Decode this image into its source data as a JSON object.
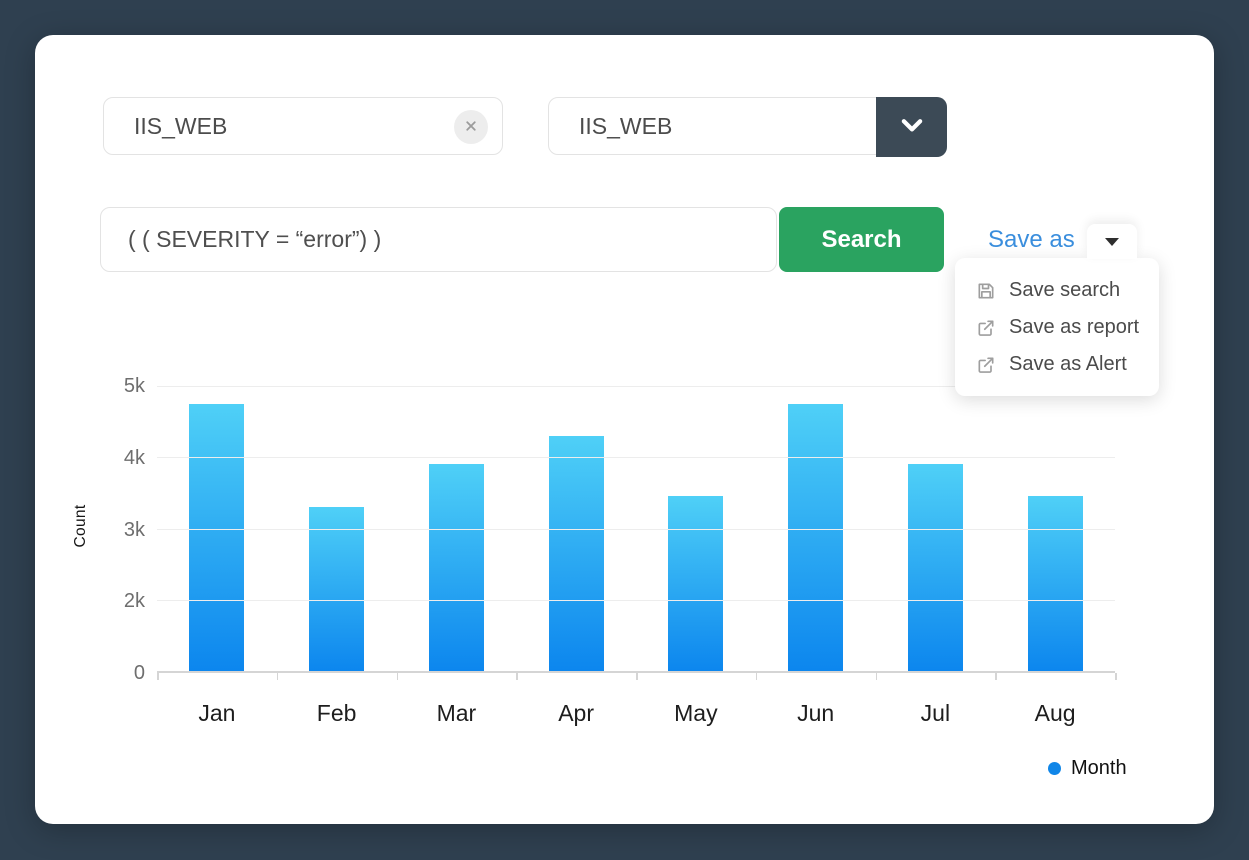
{
  "theme": {
    "page_bg": "#2f4050",
    "card_bg": "#ffffff",
    "accent_green": "#2aa360",
    "link_blue": "#3a8edd",
    "select_arrow_bg": "#3c4a56",
    "bar_gradient_top": "#4fd0f7",
    "bar_gradient_bottom": "#0c86ee",
    "legend_dot": "#1086e8"
  },
  "filters": {
    "log_type": {
      "value": "IIS_WEB"
    },
    "log_source": {
      "value": "IIS_WEB"
    }
  },
  "search": {
    "query": "( ( SEVERITY = “error”) )",
    "button_label": "Search",
    "save_as_label": "Save as",
    "menu": {
      "items": [
        {
          "icon": "save-icon",
          "label": "Save search"
        },
        {
          "icon": "external-link-icon",
          "label": "Save as report"
        },
        {
          "icon": "external-link-icon",
          "label": "Save as Alert"
        }
      ]
    }
  },
  "chart_data": {
    "type": "bar",
    "categories": [
      "Jan",
      "Feb",
      "Mar",
      "Apr",
      "May",
      "Jun",
      "Jul",
      "Aug"
    ],
    "values": [
      4750,
      3300,
      3900,
      4300,
      3450,
      4750,
      3900,
      3450
    ],
    "series_name": "Month",
    "xlabel": "",
    "ylabel": "Count",
    "ylim": [
      0,
      5000
    ],
    "y_tick_labels": [
      "5k",
      "4k",
      "3k",
      "2k",
      "0"
    ],
    "y_tick_values": [
      5000,
      4000,
      3000,
      2000,
      0
    ],
    "grid": "horizontal",
    "legend": {
      "position": "bottom-right",
      "label": "Month"
    }
  }
}
